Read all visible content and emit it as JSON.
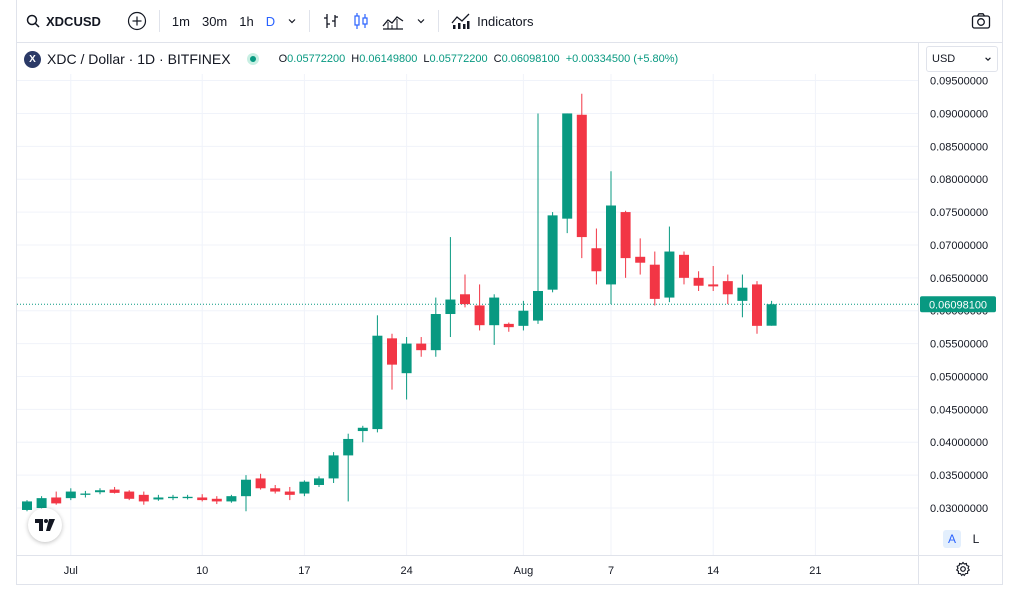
{
  "toolbar": {
    "symbol": "XDCUSD",
    "intervals": [
      "1m",
      "30m",
      "1h",
      "D"
    ],
    "active_interval": "D",
    "indicators_label": "Indicators"
  },
  "legend": {
    "logo_letter": "X",
    "title": "XDC / Dollar · 1D · BITFINEX",
    "o_label": "O",
    "o_value": "0.05772200",
    "h_label": "H",
    "h_value": "0.06149800",
    "l_label": "L",
    "l_value": "0.05772200",
    "c_label": "C",
    "c_value": "0.06098100",
    "change": "+0.00334500 (+5.80%)"
  },
  "currency": {
    "value": "USD"
  },
  "scale_buttons": {
    "auto": "A",
    "log": "L"
  },
  "colors": {
    "up": "#089981",
    "down": "#f23645",
    "accent": "#2962ff",
    "grid": "#f0f3fa"
  },
  "chart_data": {
    "type": "candlestick",
    "price_axis": [
      "0.09500000",
      "0.09000000",
      "0.08500000",
      "0.08000000",
      "0.07500000",
      "0.07000000",
      "0.06500000",
      "0.06000000",
      "0.05500000",
      "0.05000000",
      "0.04500000",
      "0.04000000",
      "0.03500000",
      "0.03000000"
    ],
    "ylim": [
      0.0275,
      0.0965
    ],
    "time_axis": [
      {
        "label": "Jul",
        "index": 3
      },
      {
        "label": "10",
        "index": 12
      },
      {
        "label": "17",
        "index": 19
      },
      {
        "label": "24",
        "index": 26
      },
      {
        "label": "Aug",
        "index": 34
      },
      {
        "label": "7",
        "index": 40
      },
      {
        "label": "14",
        "index": 47
      },
      {
        "label": "21",
        "index": 54
      }
    ],
    "last_price": "0.06098100",
    "last_value": 0.060981,
    "candles": [
      {
        "o": 0.0297,
        "h": 0.0312,
        "l": 0.0295,
        "c": 0.031
      },
      {
        "o": 0.03,
        "h": 0.0318,
        "l": 0.0298,
        "c": 0.0315
      },
      {
        "o": 0.0316,
        "h": 0.0325,
        "l": 0.0305,
        "c": 0.0307
      },
      {
        "o": 0.0315,
        "h": 0.033,
        "l": 0.0312,
        "c": 0.0325
      },
      {
        "o": 0.032,
        "h": 0.0326,
        "l": 0.0316,
        "c": 0.0322
      },
      {
        "o": 0.0324,
        "h": 0.033,
        "l": 0.0321,
        "c": 0.0327
      },
      {
        "o": 0.0328,
        "h": 0.0332,
        "l": 0.0322,
        "c": 0.0323
      },
      {
        "o": 0.0325,
        "h": 0.0327,
        "l": 0.0312,
        "c": 0.0314
      },
      {
        "o": 0.032,
        "h": 0.0325,
        "l": 0.0305,
        "c": 0.031
      },
      {
        "o": 0.0313,
        "h": 0.032,
        "l": 0.0311,
        "c": 0.0316
      },
      {
        "o": 0.0315,
        "h": 0.032,
        "l": 0.0312,
        "c": 0.0317
      },
      {
        "o": 0.0315,
        "h": 0.032,
        "l": 0.0313,
        "c": 0.0317
      },
      {
        "o": 0.0316,
        "h": 0.0321,
        "l": 0.031,
        "c": 0.0312
      },
      {
        "o": 0.0314,
        "h": 0.0318,
        "l": 0.0306,
        "c": 0.031
      },
      {
        "o": 0.031,
        "h": 0.032,
        "l": 0.0308,
        "c": 0.0318
      },
      {
        "o": 0.0318,
        "h": 0.035,
        "l": 0.0295,
        "c": 0.0343
      },
      {
        "o": 0.0345,
        "h": 0.0352,
        "l": 0.0328,
        "c": 0.033
      },
      {
        "o": 0.033,
        "h": 0.0335,
        "l": 0.0322,
        "c": 0.0325
      },
      {
        "o": 0.0325,
        "h": 0.0332,
        "l": 0.0312,
        "c": 0.032
      },
      {
        "o": 0.0322,
        "h": 0.0342,
        "l": 0.0318,
        "c": 0.034
      },
      {
        "o": 0.0335,
        "h": 0.0348,
        "l": 0.0332,
        "c": 0.0345
      },
      {
        "o": 0.0345,
        "h": 0.0385,
        "l": 0.0338,
        "c": 0.038
      },
      {
        "o": 0.038,
        "h": 0.0413,
        "l": 0.031,
        "c": 0.0405
      },
      {
        "o": 0.0417,
        "h": 0.0425,
        "l": 0.04,
        "c": 0.0422
      },
      {
        "o": 0.042,
        "h": 0.0593,
        "l": 0.0415,
        "c": 0.0562
      },
      {
        "o": 0.0558,
        "h": 0.0565,
        "l": 0.048,
        "c": 0.0518
      },
      {
        "o": 0.0505,
        "h": 0.056,
        "l": 0.0465,
        "c": 0.055
      },
      {
        "o": 0.055,
        "h": 0.056,
        "l": 0.053,
        "c": 0.054
      },
      {
        "o": 0.054,
        "h": 0.062,
        "l": 0.053,
        "c": 0.0595
      },
      {
        "o": 0.0595,
        "h": 0.0712,
        "l": 0.056,
        "c": 0.0617
      },
      {
        "o": 0.0625,
        "h": 0.0655,
        "l": 0.0605,
        "c": 0.061
      },
      {
        "o": 0.0608,
        "h": 0.064,
        "l": 0.057,
        "c": 0.0578
      },
      {
        "o": 0.0578,
        "h": 0.0625,
        "l": 0.0548,
        "c": 0.062
      },
      {
        "o": 0.058,
        "h": 0.0582,
        "l": 0.0568,
        "c": 0.0575
      },
      {
        "o": 0.0577,
        "h": 0.0615,
        "l": 0.057,
        "c": 0.06
      },
      {
        "o": 0.0585,
        "h": 0.09,
        "l": 0.058,
        "c": 0.063
      },
      {
        "o": 0.0632,
        "h": 0.075,
        "l": 0.0628,
        "c": 0.0745
      },
      {
        "o": 0.074,
        "h": 0.09,
        "l": 0.0718,
        "c": 0.09
      },
      {
        "o": 0.0898,
        "h": 0.093,
        "l": 0.068,
        "c": 0.0712
      },
      {
        "o": 0.0695,
        "h": 0.0725,
        "l": 0.064,
        "c": 0.066
      },
      {
        "o": 0.064,
        "h": 0.0812,
        "l": 0.061,
        "c": 0.076
      },
      {
        "o": 0.075,
        "h": 0.0752,
        "l": 0.065,
        "c": 0.068
      },
      {
        "o": 0.0682,
        "h": 0.071,
        "l": 0.0655,
        "c": 0.0673
      },
      {
        "o": 0.067,
        "h": 0.069,
        "l": 0.0608,
        "c": 0.0618
      },
      {
        "o": 0.062,
        "h": 0.0728,
        "l": 0.0613,
        "c": 0.069
      },
      {
        "o": 0.0685,
        "h": 0.069,
        "l": 0.064,
        "c": 0.065
      },
      {
        "o": 0.065,
        "h": 0.066,
        "l": 0.063,
        "c": 0.0638
      },
      {
        "o": 0.064,
        "h": 0.0668,
        "l": 0.063,
        "c": 0.0637
      },
      {
        "o": 0.0645,
        "h": 0.0655,
        "l": 0.061,
        "c": 0.0625
      },
      {
        "o": 0.0615,
        "h": 0.0655,
        "l": 0.059,
        "c": 0.0635
      },
      {
        "o": 0.064,
        "h": 0.0645,
        "l": 0.0565,
        "c": 0.0577
      },
      {
        "o": 0.05772,
        "h": 0.061498,
        "l": 0.05772,
        "c": 0.060981
      }
    ]
  }
}
